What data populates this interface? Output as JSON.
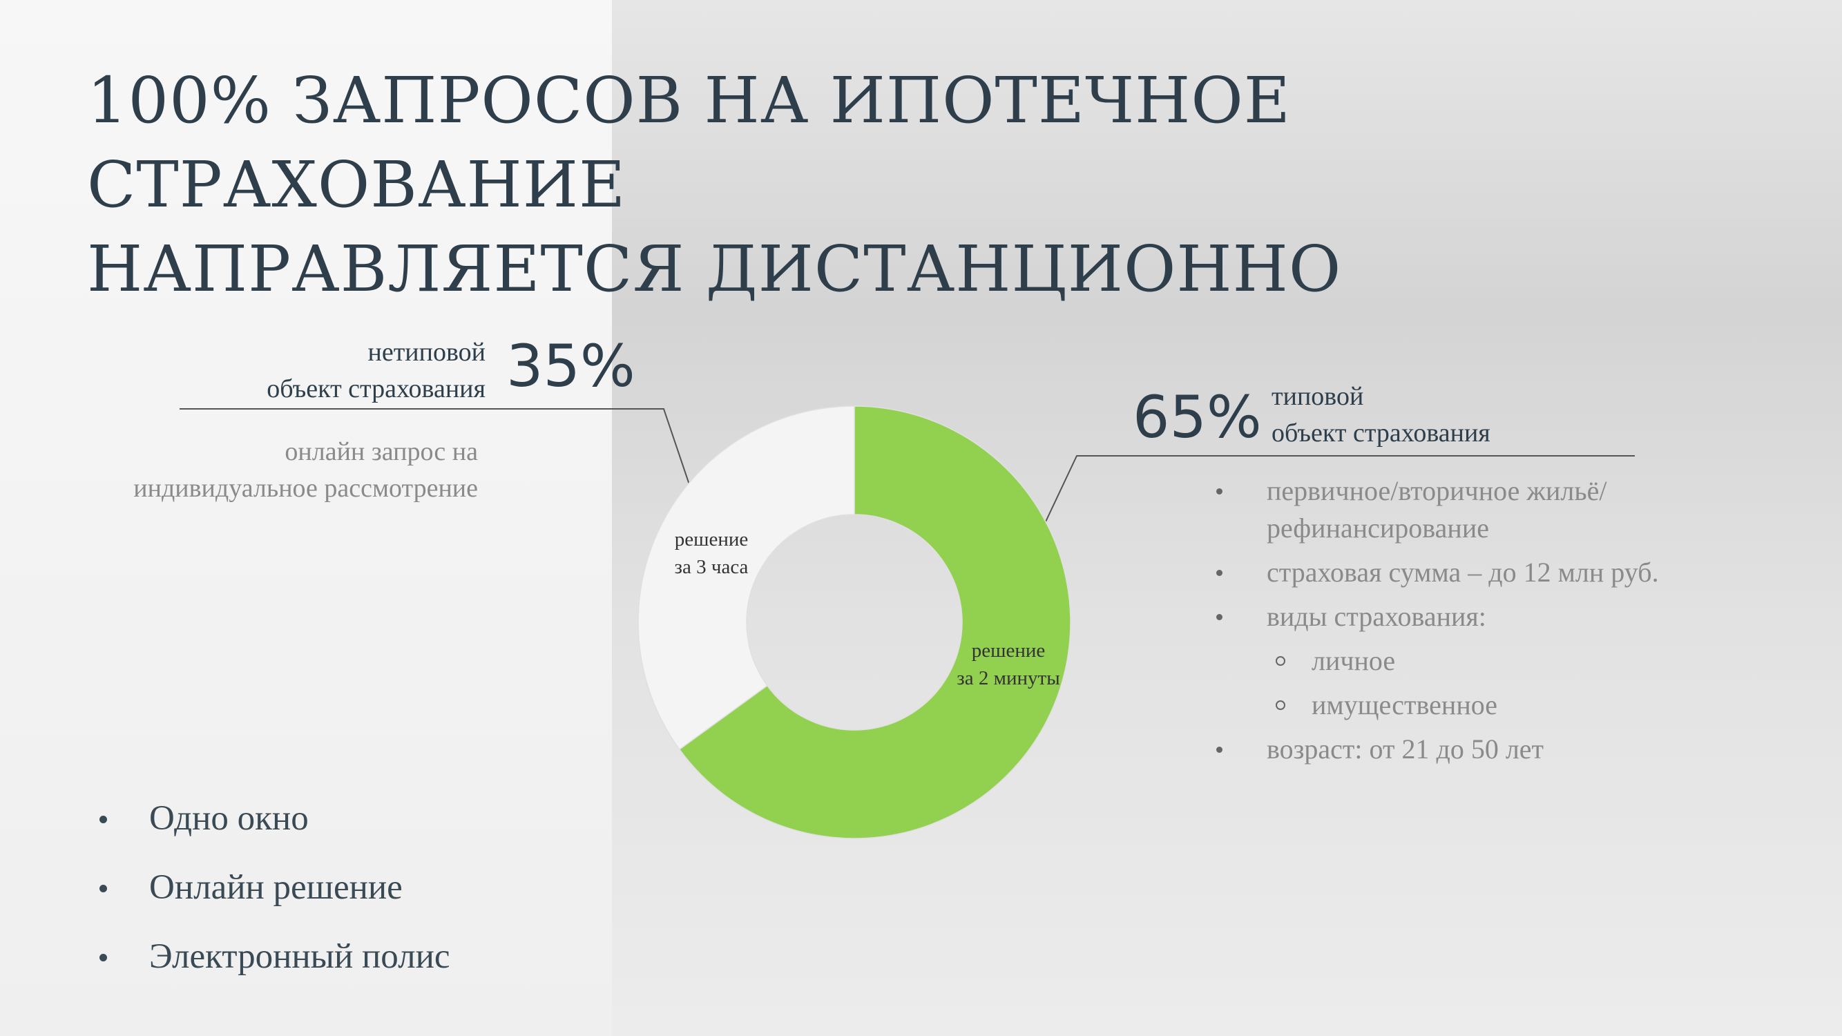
{
  "header": {
    "title": "100% ЗАПРОСОВ НА ИПОТЕЧНОЕ СТРАХОВАНИЕ\nНАПРАВЛЯЕТСЯ ДИСТАНЦИОННО"
  },
  "chart_data": {
    "type": "donut",
    "categories": [
      "типовой\nобъект страхования",
      "нетиповой\nобъект страхования"
    ],
    "values": [
      65,
      35
    ],
    "value_labels": [
      "65%",
      "35%"
    ],
    "colors": [
      "#92d050",
      "#f4f4f4"
    ],
    "annotations": [
      "решение\nза 2 минуты",
      "решение\nза 3 часа"
    ]
  },
  "atypical_note": "онлайн запрос на\nиндивидуальное рассмотрение",
  "typical_details": [
    {
      "text": "первичное/вторичное жильё/\nрефинансирование"
    },
    {
      "text": "страховая сумма – до 12 млн руб."
    },
    {
      "text": "виды страхования:",
      "sub": [
        "личное",
        "имущественное"
      ]
    },
    {
      "text": "возраст: от 21 до 50 лет"
    }
  ],
  "bullets": [
    "Одно окно",
    "Онлайн решение",
    "Электронный полис"
  ]
}
